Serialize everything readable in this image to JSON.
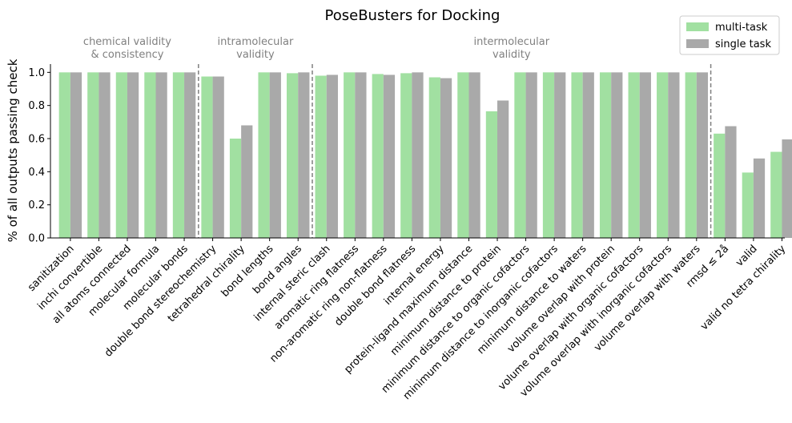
{
  "chart_data": {
    "type": "bar",
    "title": "PoseBusters for Docking",
    "ylabel": "% of all outputs passing check",
    "xlabel": "",
    "ylim": [
      0,
      1.05
    ],
    "yticks": [
      "0.0",
      "0.2",
      "0.4",
      "0.6",
      "0.8",
      "1.0"
    ],
    "ytick_values": [
      0,
      0.2,
      0.4,
      0.6,
      0.8,
      1.0
    ],
    "grid": false,
    "legend_position": "top-right",
    "categories": [
      "sanitization",
      "inchi convertible",
      "all atoms connected",
      "molecular formula",
      "molecular bonds",
      "double bond stereochemistry",
      "tetrahedral chirality",
      "bond lengths",
      "bond angles",
      "internal steric clash",
      "aromatic ring flatness",
      "non-aromatic ring non-flatness",
      "double bond flatness",
      "internal energy",
      "protein-ligand maximum distance",
      "minimum distance to protein",
      "minimum distance to organic cofactors",
      "minimum distance to inorganic cofactors",
      "minimum distance to waters",
      "volume overlap with protein",
      "volume overlap with organic cofactors",
      "volume overlap with inorganic cofactors",
      "volume overlap with waters",
      "rmsd ≤ 2å",
      "valid",
      "valid no tetra chirality"
    ],
    "series": [
      {
        "name": "multi-task",
        "color": "#a1e0a1",
        "values": [
          1.0,
          1.0,
          1.0,
          1.0,
          1.0,
          0.975,
          0.6,
          1.0,
          0.995,
          0.98,
          1.0,
          0.99,
          0.995,
          0.97,
          1.0,
          0.765,
          1.0,
          1.0,
          1.0,
          1.0,
          1.0,
          1.0,
          1.0,
          0.63,
          0.395,
          0.52
        ]
      },
      {
        "name": "single task",
        "color": "#a9a9a9",
        "values": [
          1.0,
          1.0,
          1.0,
          1.0,
          1.0,
          0.975,
          0.68,
          1.0,
          1.0,
          0.985,
          1.0,
          0.985,
          1.0,
          0.965,
          1.0,
          0.83,
          1.0,
          1.0,
          1.0,
          1.0,
          1.0,
          1.0,
          1.0,
          0.675,
          0.48,
          0.595
        ]
      }
    ],
    "group_annotations": [
      {
        "label_lines": [
          "chemical validity",
          "& consistency"
        ],
        "start": 0,
        "end": 4
      },
      {
        "label_lines": [
          "intramolecular",
          "validity"
        ],
        "start": 5,
        "end": 8
      },
      {
        "label_lines": [
          "intermolecular",
          "validity"
        ],
        "start": 9,
        "end": 22
      }
    ],
    "dividers_after": [
      4,
      8,
      22
    ]
  }
}
